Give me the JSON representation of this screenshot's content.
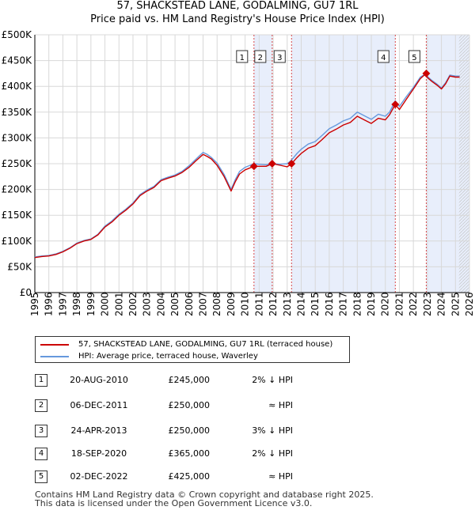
{
  "title_line1": "57, SHACKSTEAD LANE, GODALMING, GU7 1RL",
  "title_line2": "Price paid vs. HM Land Registry's House Price Index (HPI)",
  "colors": {
    "price": "#cc0000",
    "hpi": "#6699dd",
    "shade": "#e8eefb",
    "grid": "#d8d8d8",
    "vline": "#cc0000"
  },
  "chart_data": {
    "type": "line",
    "title": "Price paid vs. HM Land Registry's House Price Index (HPI)",
    "xlim": [
      1995,
      2026
    ],
    "ylim": [
      0,
      500000
    ],
    "x_ticks": [
      "1995",
      "1996",
      "1997",
      "1998",
      "1999",
      "2000",
      "2001",
      "2002",
      "2003",
      "2004",
      "2005",
      "2006",
      "2007",
      "2008",
      "2009",
      "2010",
      "2011",
      "2012",
      "2013",
      "2014",
      "2015",
      "2016",
      "2017",
      "2018",
      "2019",
      "2020",
      "2021",
      "2022",
      "2023",
      "2024",
      "2025",
      "2026"
    ],
    "y_ticks": [
      {
        "value": 0,
        "label": "£0"
      },
      {
        "value": 50000,
        "label": "£50K"
      },
      {
        "value": 100000,
        "label": "£100K"
      },
      {
        "value": 150000,
        "label": "£150K"
      },
      {
        "value": 200000,
        "label": "£200K"
      },
      {
        "value": 250000,
        "label": "£250K"
      },
      {
        "value": 300000,
        "label": "£300K"
      },
      {
        "value": 350000,
        "label": "£350K"
      },
      {
        "value": 400000,
        "label": "£400K"
      },
      {
        "value": 450000,
        "label": "£450K"
      },
      {
        "value": 500000,
        "label": "£500K"
      }
    ],
    "shaded_ranges": [
      [
        2010.63,
        2011.93
      ],
      [
        2013.31,
        2020.71
      ],
      [
        2022.92,
        2026
      ]
    ],
    "forecast_start": 2025.25,
    "series": [
      {
        "name": "57, SHACKSTEAD LANE, GODALMING, GU7 1RL (terraced house)",
        "color": "#cc0000",
        "x": [
          1995,
          1995.5,
          1996,
          1996.5,
          1997,
          1997.5,
          1998,
          1998.5,
          1999,
          1999.5,
          2000,
          2000.5,
          2001,
          2001.5,
          2002,
          2002.5,
          2003,
          2003.5,
          2004,
          2004.5,
          2005,
          2005.5,
          2006,
          2006.5,
          2007,
          2007.3,
          2007.6,
          2008,
          2008.5,
          2009,
          2009.3,
          2009.6,
          2010,
          2010.63,
          2011,
          2011.5,
          2011.93,
          2012.5,
          2013,
          2013.31,
          2013.7,
          2014,
          2014.5,
          2015,
          2015.5,
          2016,
          2016.5,
          2017,
          2017.5,
          2018,
          2018.5,
          2019,
          2019.5,
          2020,
          2020.3,
          2020.71,
          2021,
          2021.5,
          2022,
          2022.5,
          2022.92,
          2023,
          2023.3,
          2023.7,
          2024,
          2024.3,
          2024.6,
          2025,
          2025.3
        ],
        "values": [
          68000,
          70000,
          71000,
          74000,
          79000,
          86000,
          95000,
          100000,
          103000,
          112000,
          127000,
          137000,
          150000,
          160000,
          172000,
          188000,
          197000,
          204000,
          217000,
          222000,
          226000,
          233000,
          243000,
          256000,
          268000,
          264000,
          259000,
          247000,
          225000,
          197000,
          215000,
          230000,
          238000,
          245000,
          245000,
          245000,
          250000,
          247000,
          244000,
          250000,
          262000,
          270000,
          280000,
          285000,
          297000,
          310000,
          317000,
          325000,
          330000,
          342000,
          335000,
          328000,
          338000,
          335000,
          345000,
          365000,
          355000,
          375000,
          395000,
          415000,
          425000,
          417000,
          410000,
          402000,
          395000,
          405000,
          420000,
          418000,
          418000
        ]
      },
      {
        "name": "HPI: Average price, terraced house, Waverley",
        "color": "#6699dd",
        "x": [
          1995,
          1995.5,
          1996,
          1996.5,
          1997,
          1997.5,
          1998,
          1998.5,
          1999,
          1999.5,
          2000,
          2000.5,
          2001,
          2001.5,
          2002,
          2002.5,
          2003,
          2003.5,
          2004,
          2004.5,
          2005,
          2005.5,
          2006,
          2006.5,
          2007,
          2007.3,
          2007.6,
          2008,
          2008.5,
          2009,
          2009.3,
          2009.6,
          2010,
          2010.63,
          2011,
          2011.5,
          2011.93,
          2012.5,
          2013,
          2013.31,
          2013.7,
          2014,
          2014.5,
          2015,
          2015.5,
          2016,
          2016.5,
          2017,
          2017.5,
          2018,
          2018.5,
          2019,
          2019.5,
          2020,
          2020.3,
          2020.71,
          2021,
          2021.5,
          2022,
          2022.5,
          2022.92,
          2023,
          2023.3,
          2023.7,
          2024,
          2024.3,
          2024.6,
          2025,
          2025.3
        ],
        "values": [
          69000,
          71000,
          72000,
          75000,
          80000,
          87000,
          96000,
          101000,
          104000,
          113000,
          129000,
          139000,
          152000,
          162000,
          174000,
          190000,
          199000,
          206000,
          219000,
          224000,
          228000,
          235000,
          246000,
          259000,
          272000,
          268000,
          262000,
          251000,
          229000,
          200000,
          219000,
          235000,
          243000,
          250000,
          249000,
          248000,
          250000,
          249000,
          250000,
          257000,
          270000,
          278000,
          288000,
          293000,
          305000,
          318000,
          325000,
          333000,
          338000,
          350000,
          343000,
          336000,
          346000,
          342000,
          350000,
          372000,
          361000,
          380000,
          398000,
          418000,
          425000,
          419000,
          412000,
          404000,
          397000,
          407000,
          422000,
          420000,
          420000
        ]
      }
    ],
    "sales": [
      {
        "id": "1",
        "date": "20-AUG-2010",
        "x": 2010.63,
        "price": 245000,
        "price_label": "£245,000",
        "hpi": "2% ↓ HPI"
      },
      {
        "id": "2",
        "date": "06-DEC-2011",
        "x": 2011.93,
        "price": 250000,
        "price_label": "£250,000",
        "hpi": "≈ HPI"
      },
      {
        "id": "3",
        "date": "24-APR-2013",
        "x": 2013.31,
        "price": 250000,
        "price_label": "£250,000",
        "hpi": "3% ↓ HPI"
      },
      {
        "id": "4",
        "date": "18-SEP-2020",
        "x": 2020.71,
        "price": 365000,
        "price_label": "£365,000",
        "hpi": "2% ↓ HPI"
      },
      {
        "id": "5",
        "date": "02-DEC-2022",
        "x": 2022.92,
        "price": 425000,
        "price_label": "£425,000",
        "hpi": "≈ HPI"
      }
    ]
  },
  "legend": {
    "price_label": "57, SHACKSTEAD LANE, GODALMING, GU7 1RL (terraced house)",
    "hpi_label": "HPI: Average price, terraced house, Waverley"
  },
  "footer": {
    "line1": "Contains HM Land Registry data © Crown copyright and database right 2025.",
    "line2": "This data is licensed under the Open Government Licence v3.0."
  }
}
